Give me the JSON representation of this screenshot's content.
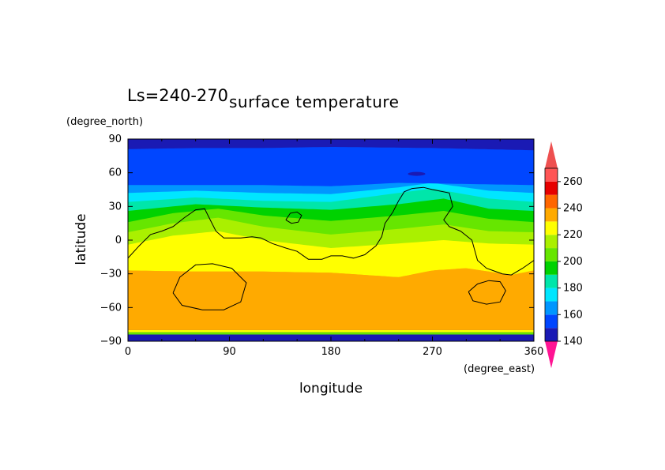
{
  "header": {
    "period_label": "Ls=240-270",
    "title": "surface temperature"
  },
  "axes": {
    "ylabel": "latitude",
    "yunit": "(degree_north)",
    "xlabel": "longitude",
    "xunit": "(degree_east)"
  },
  "chart_data": {
    "type": "heatmap",
    "title": "surface temperature",
    "subtitle": "Ls=240-270",
    "xlabel": "longitude",
    "xunit": "(degree_east)",
    "ylabel": "latitude",
    "yunit": "(degree_north)",
    "xlim": [
      0,
      360
    ],
    "ylim": [
      -90,
      90
    ],
    "x_ticks": [
      0,
      90,
      180,
      270,
      360
    ],
    "y_ticks": [
      -90,
      -60,
      -30,
      0,
      30,
      60,
      90
    ],
    "colorbar": {
      "levels": [
        140,
        150,
        160,
        170,
        180,
        190,
        200,
        210,
        220,
        230,
        240,
        250,
        260,
        270
      ],
      "tick_labels": [
        140,
        160,
        180,
        200,
        220,
        240,
        260
      ],
      "colors": [
        "#1a1ab4",
        "#0046ff",
        "#0096ff",
        "#00e6ff",
        "#00e6aa",
        "#00d200",
        "#66e600",
        "#aaf000",
        "#ffff00",
        "#ffaa00",
        "#ff6600",
        "#e60000",
        "#ff5555"
      ],
      "under_color": "#ff1493",
      "over_color": "#ee5050"
    },
    "grid": false,
    "legend": "colorbar-right",
    "band_profiles": [
      {
        "level": 240,
        "x": [
          0,
          60,
          120,
          180,
          240,
          270,
          300,
          340,
          360
        ],
        "y": [
          -27,
          -28,
          -28,
          -29,
          -33,
          -27,
          -25,
          -31,
          -27
        ]
      },
      {
        "level": 230,
        "x": [
          0,
          60,
          120,
          180,
          240,
          300,
          360
        ],
        "y": [
          -14,
          -12,
          -16,
          -18,
          -18,
          -15,
          -14
        ]
      },
      {
        "level": 220,
        "x": [
          0,
          40,
          80,
          120,
          180,
          240,
          280,
          320,
          360
        ],
        "y": [
          -4,
          4,
          8,
          0,
          -7,
          -3,
          0,
          -3,
          -4
        ]
      },
      {
        "level": 210,
        "x": [
          0,
          40,
          80,
          120,
          180,
          240,
          280,
          320,
          360
        ],
        "y": [
          7,
          15,
          20,
          12,
          5,
          10,
          14,
          8,
          7
        ]
      },
      {
        "level": 200,
        "x": [
          0,
          40,
          80,
          120,
          180,
          240,
          280,
          320,
          360
        ],
        "y": [
          16,
          24,
          28,
          22,
          17,
          22,
          26,
          19,
          16
        ]
      },
      {
        "level": 190,
        "x": [
          0,
          60,
          120,
          180,
          240,
          280,
          320,
          360
        ],
        "y": [
          26,
          32,
          29,
          27,
          32,
          37,
          28,
          26
        ]
      },
      {
        "level": 180,
        "x": [
          0,
          60,
          120,
          180,
          240,
          270,
          320,
          360
        ],
        "y": [
          34,
          38,
          35,
          34,
          42,
          46,
          37,
          34
        ]
      },
      {
        "level": 170,
        "x": [
          0,
          60,
          120,
          180,
          240,
          270,
          320,
          360
        ],
        "y": [
          42,
          44,
          42,
          41,
          47,
          51,
          44,
          42
        ]
      },
      {
        "level": 160,
        "x": [
          0,
          60,
          120,
          180,
          240,
          360
        ],
        "y": [
          49,
          49,
          49,
          48,
          51,
          49
        ]
      },
      {
        "level": 150,
        "x": [
          0,
          60,
          120,
          180,
          270,
          360
        ],
        "y": [
          81,
          82,
          82,
          83,
          82,
          80
        ]
      }
    ],
    "overlay_contours": [
      {
        "name": "continent-outline",
        "points": [
          [
            0,
            -16
          ],
          [
            10,
            -5
          ],
          [
            20,
            5
          ],
          [
            30,
            8
          ],
          [
            40,
            12
          ],
          [
            50,
            20
          ],
          [
            60,
            27
          ],
          [
            68,
            28
          ],
          [
            72,
            20
          ],
          [
            78,
            8
          ],
          [
            85,
            2
          ],
          [
            100,
            2
          ],
          [
            110,
            3
          ],
          [
            118,
            2
          ],
          [
            128,
            -3
          ],
          [
            140,
            -7
          ],
          [
            150,
            -10
          ],
          [
            160,
            -17
          ],
          [
            172,
            -17
          ],
          [
            180,
            -14
          ],
          [
            190,
            -14
          ],
          [
            200,
            -16
          ],
          [
            210,
            -13
          ],
          [
            220,
            -5
          ],
          [
            225,
            3
          ],
          [
            228,
            15
          ],
          [
            235,
            25
          ],
          [
            240,
            35
          ],
          [
            245,
            43
          ],
          [
            252,
            46
          ],
          [
            262,
            47
          ],
          [
            270,
            45
          ],
          [
            285,
            42
          ],
          [
            288,
            30
          ],
          [
            280,
            18
          ],
          [
            285,
            12
          ],
          [
            295,
            8
          ],
          [
            305,
            0
          ],
          [
            310,
            -18
          ],
          [
            318,
            -25
          ],
          [
            332,
            -30
          ],
          [
            340,
            -31
          ],
          [
            350,
            -25
          ],
          [
            360,
            -18
          ]
        ]
      },
      {
        "name": "small-ring-north",
        "points": [
          [
            140,
            18
          ],
          [
            144,
            24
          ],
          [
            150,
            25
          ],
          [
            154,
            22
          ],
          [
            151,
            16
          ],
          [
            145,
            15
          ],
          [
            140,
            18
          ]
        ]
      },
      {
        "name": "west-basin-ring",
        "points": [
          [
            40,
            -47
          ],
          [
            46,
            -33
          ],
          [
            60,
            -22
          ],
          [
            75,
            -21
          ],
          [
            92,
            -25
          ],
          [
            105,
            -38
          ],
          [
            100,
            -55
          ],
          [
            85,
            -62
          ],
          [
            66,
            -62
          ],
          [
            48,
            -58
          ],
          [
            40,
            -47
          ]
        ]
      },
      {
        "name": "east-basin-ring",
        "points": [
          [
            302,
            -46
          ],
          [
            310,
            -39
          ],
          [
            320,
            -36
          ],
          [
            330,
            -37
          ],
          [
            335,
            -45
          ],
          [
            330,
            -55
          ],
          [
            318,
            -57
          ],
          [
            306,
            -54
          ],
          [
            302,
            -46
          ]
        ]
      }
    ],
    "blob": {
      "lon": 256,
      "lat": 59,
      "color": "#1a1ab4"
    }
  }
}
